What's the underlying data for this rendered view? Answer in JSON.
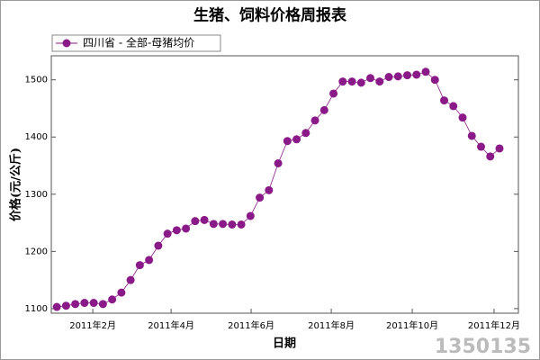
{
  "chart_data": {
    "type": "line",
    "title": "生猪、饲料价格周报表",
    "x_label": "日期",
    "y_label": "价格(元/公斤)",
    "watermark": "1350135",
    "series": [
      {
        "name": "四川省 - 全部-母猪均价",
        "color": "#8b1a89",
        "values": [
          1103,
          1105,
          1108,
          1110,
          1110,
          1108,
          1116,
          1128,
          1150,
          1176,
          1185,
          1210,
          1231,
          1237,
          1240,
          1253,
          1255,
          1248,
          1248,
          1247,
          1247,
          1262,
          1294,
          1307,
          1354,
          1393,
          1396,
          1407,
          1429,
          1447,
          1476,
          1497,
          1497,
          1495,
          1503,
          1497,
          1505,
          1506,
          1508,
          1509,
          1514,
          1500,
          1464,
          1454,
          1434,
          1402,
          1383,
          1366,
          1380
        ]
      }
    ],
    "xlim": [
      -0.6,
      50.05
    ],
    "xticks": [
      {
        "value": 3.9,
        "label": "2011年2月"
      },
      {
        "value": 12.39,
        "label": "2011年4月"
      },
      {
        "value": 21.07,
        "label": "2011年6月"
      },
      {
        "value": 29.76,
        "label": "2011年8月"
      },
      {
        "value": 38.54,
        "label": "2011年10月"
      },
      {
        "value": 47.41,
        "label": "2011年12月"
      }
    ],
    "ylim": [
      1092,
      1542
    ],
    "yticks": [
      1100,
      1200,
      1300,
      1400,
      1500
    ]
  }
}
